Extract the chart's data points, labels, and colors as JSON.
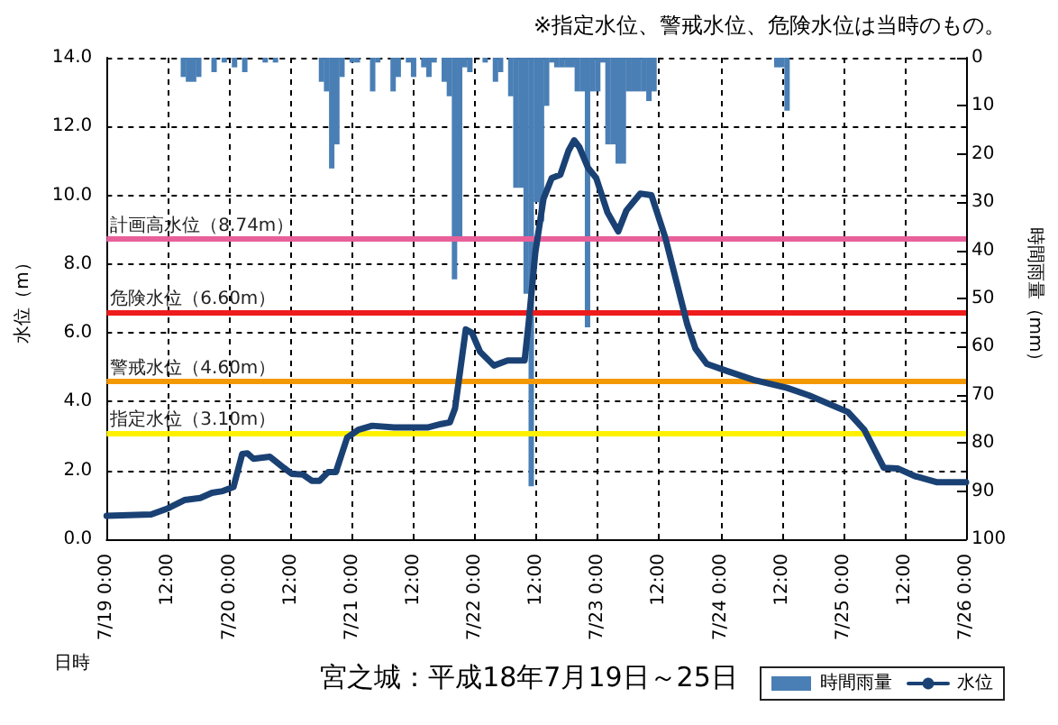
{
  "chart_data": {
    "type": "line",
    "title": "宮之城：平成18年7月19日～25日",
    "annotations": [
      "※指定水位、警戒水位、危険水位は当時のもの。"
    ],
    "xlabel": "日時",
    "ylabel": "水位（m）",
    "y2label": "時間雨量（mm）",
    "xlim": [
      "--07-19T00:00",
      "--07-26T00:00"
    ],
    "xticks": [
      {
        "value": "--07-19T00:00",
        "label": "7/19 0:00"
      },
      {
        "value": "--07-19T12:00",
        "label": "12:00"
      },
      {
        "value": "--07-20T00:00",
        "label": "7/20 0:00"
      },
      {
        "value": "--07-20T12:00",
        "label": "12:00"
      },
      {
        "value": "--07-21T00:00",
        "label": "7/21 0:00"
      },
      {
        "value": "--07-21T12:00",
        "label": "12:00"
      },
      {
        "value": "--07-22T00:00",
        "label": "7/22 0:00"
      },
      {
        "value": "--07-22T12:00",
        "label": "12:00"
      },
      {
        "value": "--07-23T00:00",
        "label": "7/23 0:00"
      },
      {
        "value": "--07-23T12:00",
        "label": "12:00"
      },
      {
        "value": "--07-24T00:00",
        "label": "7/24 0:00"
      },
      {
        "value": "--07-24T12:00",
        "label": "12:00"
      },
      {
        "value": "--07-25T00:00",
        "label": "7/25 0:00"
      },
      {
        "value": "--07-25T12:00",
        "label": "12:00"
      },
      {
        "value": "--07-26T00:00",
        "label": "7/26 0:00"
      }
    ],
    "ylim": [
      0,
      14
    ],
    "yticks": [
      {
        "value": 0,
        "label": "0.0"
      },
      {
        "value": 2,
        "label": "2.0"
      },
      {
        "value": 4,
        "label": "4.0"
      },
      {
        "value": 6,
        "label": "6.0"
      },
      {
        "value": 8,
        "label": "8.0"
      },
      {
        "value": 10,
        "label": "10.0"
      },
      {
        "value": 12,
        "label": "12.0"
      },
      {
        "value": 14,
        "label": "14.0"
      }
    ],
    "y2lim": [
      100,
      0
    ],
    "y2ticks": [
      0,
      10,
      20,
      30,
      40,
      50,
      60,
      70,
      80,
      90,
      100
    ],
    "series": [
      {
        "name": "時間雨量",
        "type": "bar",
        "axis": "y2",
        "color": "#4a7fb5",
        "x": [
          "--07-19T15:00",
          "--07-19T16:00",
          "--07-19T17:00",
          "--07-19T18:00",
          "--07-19T21:00",
          "--07-19T23:00",
          "--07-20T01:00",
          "--07-20T03:00",
          "--07-20T07:00",
          "--07-20T09:00",
          "--07-20T18:00",
          "--07-20T19:00",
          "--07-20T20:00",
          "--07-20T21:00",
          "--07-20T22:00",
          "--07-21T00:00",
          "--07-21T01:00",
          "--07-21T04:00",
          "--07-21T05:00",
          "--07-21T08:00",
          "--07-21T09:00",
          "--07-21T11:00",
          "--07-21T12:00",
          "--07-21T14:00",
          "--07-21T15:00",
          "--07-21T16:00",
          "--07-21T18:00",
          "--07-21T19:00",
          "--07-21T20:00",
          "--07-21T21:00",
          "--07-21T22:00",
          "--07-21T23:00",
          "--07-22T02:00",
          "--07-22T04:00",
          "--07-22T05:00",
          "--07-22T07:00",
          "--07-22T08:00",
          "--07-22T09:00",
          "--07-22T10:00",
          "--07-22T11:00",
          "--07-22T12:00",
          "--07-22T13:00",
          "--07-22T14:00",
          "--07-22T15:00",
          "--07-22T16:00",
          "--07-22T17:00",
          "--07-22T18:00",
          "--07-22T19:00",
          "--07-22T20:00",
          "--07-22T21:00",
          "--07-22T22:00",
          "--07-22T23:00",
          "--07-23T00:00",
          "--07-23T01:00",
          "--07-23T02:00",
          "--07-23T03:00",
          "--07-23T04:00",
          "--07-23T05:00",
          "--07-23T06:00",
          "--07-23T07:00",
          "--07-23T08:00",
          "--07-23T09:00",
          "--07-23T10:00",
          "--07-23T11:00",
          "--07-24T11:00",
          "--07-24T12:00",
          "--07-24T13:00"
        ],
        "values": [
          4,
          5,
          5,
          4,
          3,
          1,
          2,
          3,
          1,
          1,
          5,
          7,
          23,
          18,
          4,
          1,
          1,
          7,
          1,
          7,
          4,
          1,
          4,
          2,
          4,
          1,
          5,
          8,
          46,
          38,
          2,
          3,
          1,
          5,
          3,
          8,
          27,
          27,
          49,
          89,
          30,
          34,
          10,
          1,
          2,
          2,
          2,
          2,
          7,
          7,
          56,
          7,
          7,
          1,
          18,
          18,
          22,
          22,
          7,
          7,
          7,
          7,
          9,
          7,
          2,
          2,
          11
        ]
      },
      {
        "name": "水位",
        "color": "#1a4174",
        "x": [
          "--07-19T00:00",
          "--07-19T08:42",
          "--07-19T12:00",
          "--07-19T15:12",
          "--07-19T18:18",
          "--07-19T20:36",
          "--07-19T22:42",
          "--07-20T00:48",
          "--07-20T02:30",
          "--07-20T03:30",
          "--07-20T04:42",
          "--07-20T07:54",
          "--07-20T10:36",
          "--07-20T12:12",
          "--07-20T14:24",
          "--07-20T16:06",
          "--07-20T17:36",
          "--07-20T19:18",
          "--07-20T20:48",
          "--07-20T23:00",
          "--07-21T01:12",
          "--07-21T03:54",
          "--07-21T08:12",
          "--07-21T14:42",
          "--07-21T17:24",
          "--07-21T19:06",
          "--07-21T20:06",
          "--07-21T22:12",
          "--07-21T23:24",
          "--07-22T01:00",
          "--07-22T03:42",
          "--07-22T06:24",
          "--07-22T09:42",
          "--07-22T10:30",
          "--07-22T11:48",
          "--07-22T13:24",
          "--07-22T15:00",
          "--07-22T16:42",
          "--07-22T18:18",
          "--07-22T19:24",
          "--07-22T20:24",
          "--07-22T22:06",
          "--07-22T23:42",
          "--07-23T01:54",
          "--07-23T04:00",
          "--07-23T05:36",
          "--07-23T08:18",
          "--07-23T10:30",
          "--07-23T13:12",
          "--07-23T17:30",
          "--07-23T19:06",
          "--07-23T21:18",
          "--07-24T01:06",
          "--07-24T06:30",
          "--07-24T13:00",
          "--07-24T17:18",
          "--07-25T00:54",
          "--07-25T04:06",
          "--07-25T07:54",
          "--07-25T10:36",
          "--07-25T13:54",
          "--07-25T18:12",
          "--07-26T00:00"
        ],
        "values": [
          0.68,
          0.72,
          0.9,
          1.14,
          1.2,
          1.35,
          1.4,
          1.52,
          2.48,
          2.5,
          2.34,
          2.4,
          2.08,
          1.9,
          1.88,
          1.7,
          1.7,
          1.95,
          1.95,
          2.95,
          3.18,
          3.3,
          3.25,
          3.25,
          3.35,
          3.4,
          3.8,
          6.1,
          6.0,
          5.45,
          5.05,
          5.2,
          5.2,
          6.3,
          8.34,
          9.9,
          10.5,
          10.6,
          11.3,
          11.6,
          11.4,
          10.8,
          10.5,
          9.5,
          8.95,
          9.56,
          10.05,
          10.0,
          8.77,
          6.24,
          5.54,
          5.1,
          4.9,
          4.63,
          4.4,
          4.18,
          3.7,
          3.18,
          2.08,
          2.06,
          1.84,
          1.66,
          1.66
        ]
      }
    ],
    "ref_lines": [
      {
        "axis": "y",
        "value": 8.74,
        "label": "計画高水位（8.74m）",
        "color": "#e8609a"
      },
      {
        "axis": "y",
        "value": 6.6,
        "label": "危険水位（6.60m）",
        "color": "#ee1c1c"
      },
      {
        "axis": "y",
        "value": 4.6,
        "label": "警戒水位（4.60m）",
        "color": "#f39800"
      },
      {
        "axis": "y",
        "value": 3.1,
        "label": "指定水位（3.10m）",
        "color": "#fff000"
      }
    ],
    "marker": "none",
    "grid": true,
    "legend": "bottom right"
  }
}
